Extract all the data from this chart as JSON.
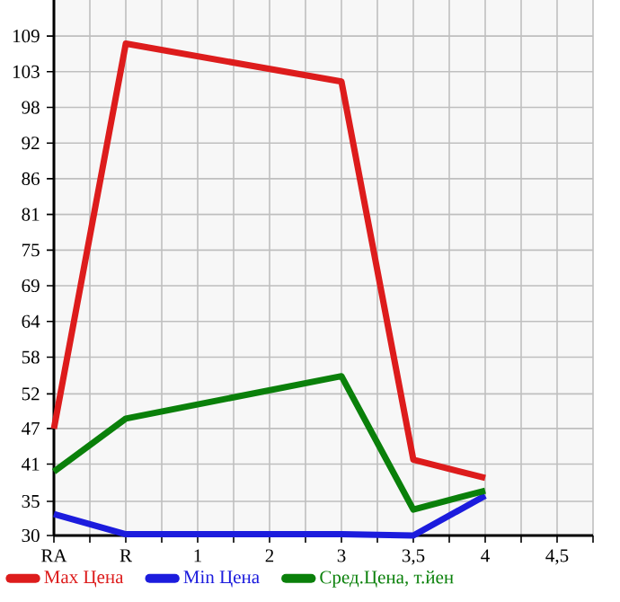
{
  "chart_data": {
    "type": "line",
    "categories": [
      "RA",
      "R",
      "1",
      "2",
      "3",
      "3,5",
      "4",
      "4,5"
    ],
    "series": [
      {
        "name": "Max Цена",
        "color": "#dd1c1c",
        "values": [
          46.9,
          107.8,
          null,
          null,
          101.8,
          42.0,
          39.1,
          null
        ]
      },
      {
        "name": "Min Цена",
        "color": "#1c1cdd",
        "values": [
          33.4,
          30.2,
          null,
          null,
          30.2,
          30,
          36.3,
          null
        ]
      },
      {
        "name": "Сред.Цена, т.йен",
        "color": "#0a800a",
        "values": [
          40.1,
          48.5,
          null,
          null,
          55.2,
          34.1,
          37.1,
          null
        ]
      }
    ],
    "ylim": [
      30,
      114.7
    ],
    "yticks": [
      {
        "value": 30,
        "label": "30"
      },
      {
        "value": 35.4,
        "label": "35"
      },
      {
        "value": 41.29,
        "label": "41"
      },
      {
        "value": 46.93,
        "label": "47"
      },
      {
        "value": 52.4,
        "label": "52"
      },
      {
        "value": 58.21,
        "label": "58"
      },
      {
        "value": 63.86,
        "label": "64"
      },
      {
        "value": 69.5,
        "label": "69"
      },
      {
        "value": 75.14,
        "label": "75"
      },
      {
        "value": 80.79,
        "label": "81"
      },
      {
        "value": 86.43,
        "label": "86"
      },
      {
        "value": 92.07,
        "label": "92"
      },
      {
        "value": 97.71,
        "label": "98"
      },
      {
        "value": 103.36,
        "label": "103"
      },
      {
        "value": 109,
        "label": "109"
      }
    ],
    "grid": true,
    "legend": "bottom",
    "marker": "none",
    "line_style": "solid"
  }
}
